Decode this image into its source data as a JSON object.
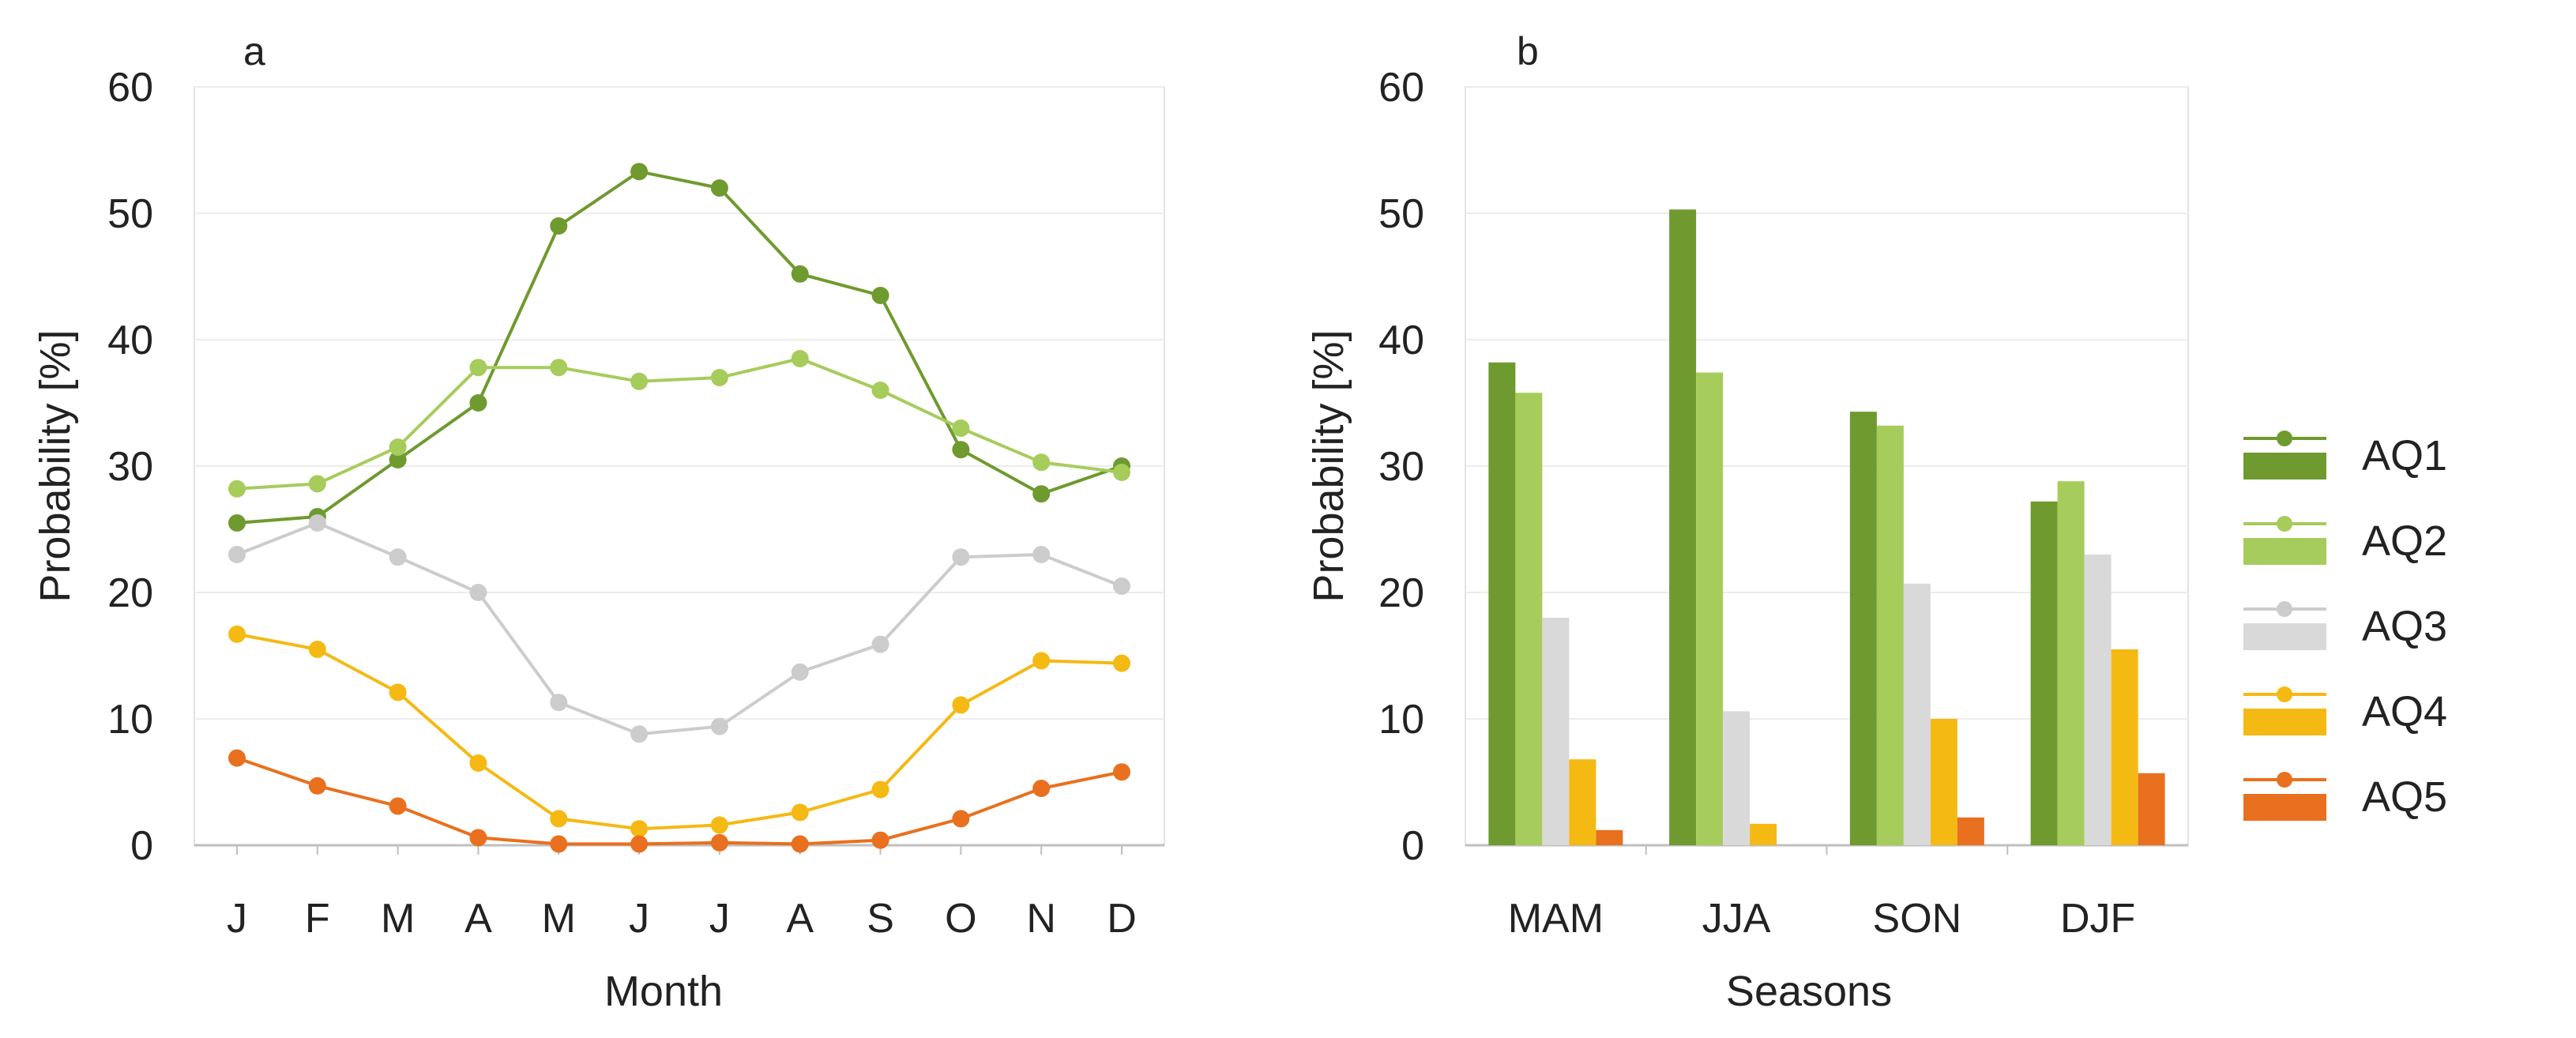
{
  "chart_data": [
    {
      "panel_label": "a",
      "type": "line",
      "title": "",
      "xlabel": "Month",
      "ylabel": "Probability [%]",
      "ylim": [
        0,
        60
      ],
      "yticks": [
        0,
        10,
        20,
        30,
        40,
        50,
        60
      ],
      "grid": true,
      "categories": [
        "J",
        "F",
        "M",
        "A",
        "M",
        "J",
        "J",
        "A",
        "S",
        "O",
        "N",
        "D"
      ],
      "series": [
        {
          "name": "AQ1",
          "color": "#6f9a2f",
          "values": [
            25.5,
            26.0,
            30.5,
            35.0,
            49.0,
            53.3,
            52.0,
            45.2,
            43.5,
            31.3,
            27.8,
            30.0
          ]
        },
        {
          "name": "AQ2",
          "color": "#a6cc5c",
          "values": [
            28.2,
            28.6,
            31.5,
            37.8,
            37.8,
            36.7,
            37.0,
            38.5,
            36.0,
            33.0,
            30.3,
            29.5
          ]
        },
        {
          "name": "AQ3",
          "color": "#cccccc",
          "values": [
            23.0,
            25.5,
            22.8,
            20.0,
            11.3,
            8.8,
            9.4,
            13.7,
            15.9,
            22.8,
            23.0,
            20.5
          ]
        },
        {
          "name": "AQ4",
          "color": "#f5b914",
          "values": [
            16.7,
            15.5,
            12.1,
            6.5,
            2.1,
            1.3,
            1.6,
            2.6,
            4.4,
            11.1,
            14.6,
            14.4
          ]
        },
        {
          "name": "AQ5",
          "color": "#e9701e",
          "values": [
            6.9,
            4.7,
            3.1,
            0.6,
            0.1,
            0.1,
            0.2,
            0.1,
            0.4,
            2.1,
            4.5,
            5.8
          ]
        }
      ]
    },
    {
      "panel_label": "b",
      "type": "bar",
      "title": "",
      "xlabel": "Seasons",
      "ylabel": "Probability [%]",
      "ylim": [
        0,
        60
      ],
      "yticks": [
        0,
        10,
        20,
        30,
        40,
        50,
        60
      ],
      "grid": true,
      "categories": [
        "MAM",
        "JJA",
        "SON",
        "DJF"
      ],
      "series": [
        {
          "name": "AQ1",
          "color": "#6f9a2f",
          "values": [
            38.2,
            50.3,
            34.3,
            27.2
          ]
        },
        {
          "name": "AQ2",
          "color": "#a6cc5c",
          "values": [
            35.8,
            37.4,
            33.2,
            28.8
          ]
        },
        {
          "name": "AQ3",
          "color": "#d9d9d9",
          "values": [
            18.0,
            10.6,
            20.7,
            23.0
          ]
        },
        {
          "name": "AQ4",
          "color": "#f5b914",
          "values": [
            6.8,
            1.7,
            10.0,
            15.5
          ]
        },
        {
          "name": "AQ5",
          "color": "#e9701e",
          "values": [
            1.2,
            0.0,
            2.2,
            5.7
          ]
        }
      ]
    }
  ],
  "legend": {
    "placement": "right",
    "entries": [
      {
        "label": "AQ1",
        "line_color": "#6f9a2f",
        "bar_color": "#6f9a2f"
      },
      {
        "label": "AQ2",
        "line_color": "#a6cc5c",
        "bar_color": "#a6cc5c"
      },
      {
        "label": "AQ3",
        "line_color": "#cccccc",
        "bar_color": "#d9d9d9"
      },
      {
        "label": "AQ4",
        "line_color": "#f5b914",
        "bar_color": "#f5b914"
      },
      {
        "label": "AQ5",
        "line_color": "#e9701e",
        "bar_color": "#e9701e"
      }
    ]
  }
}
